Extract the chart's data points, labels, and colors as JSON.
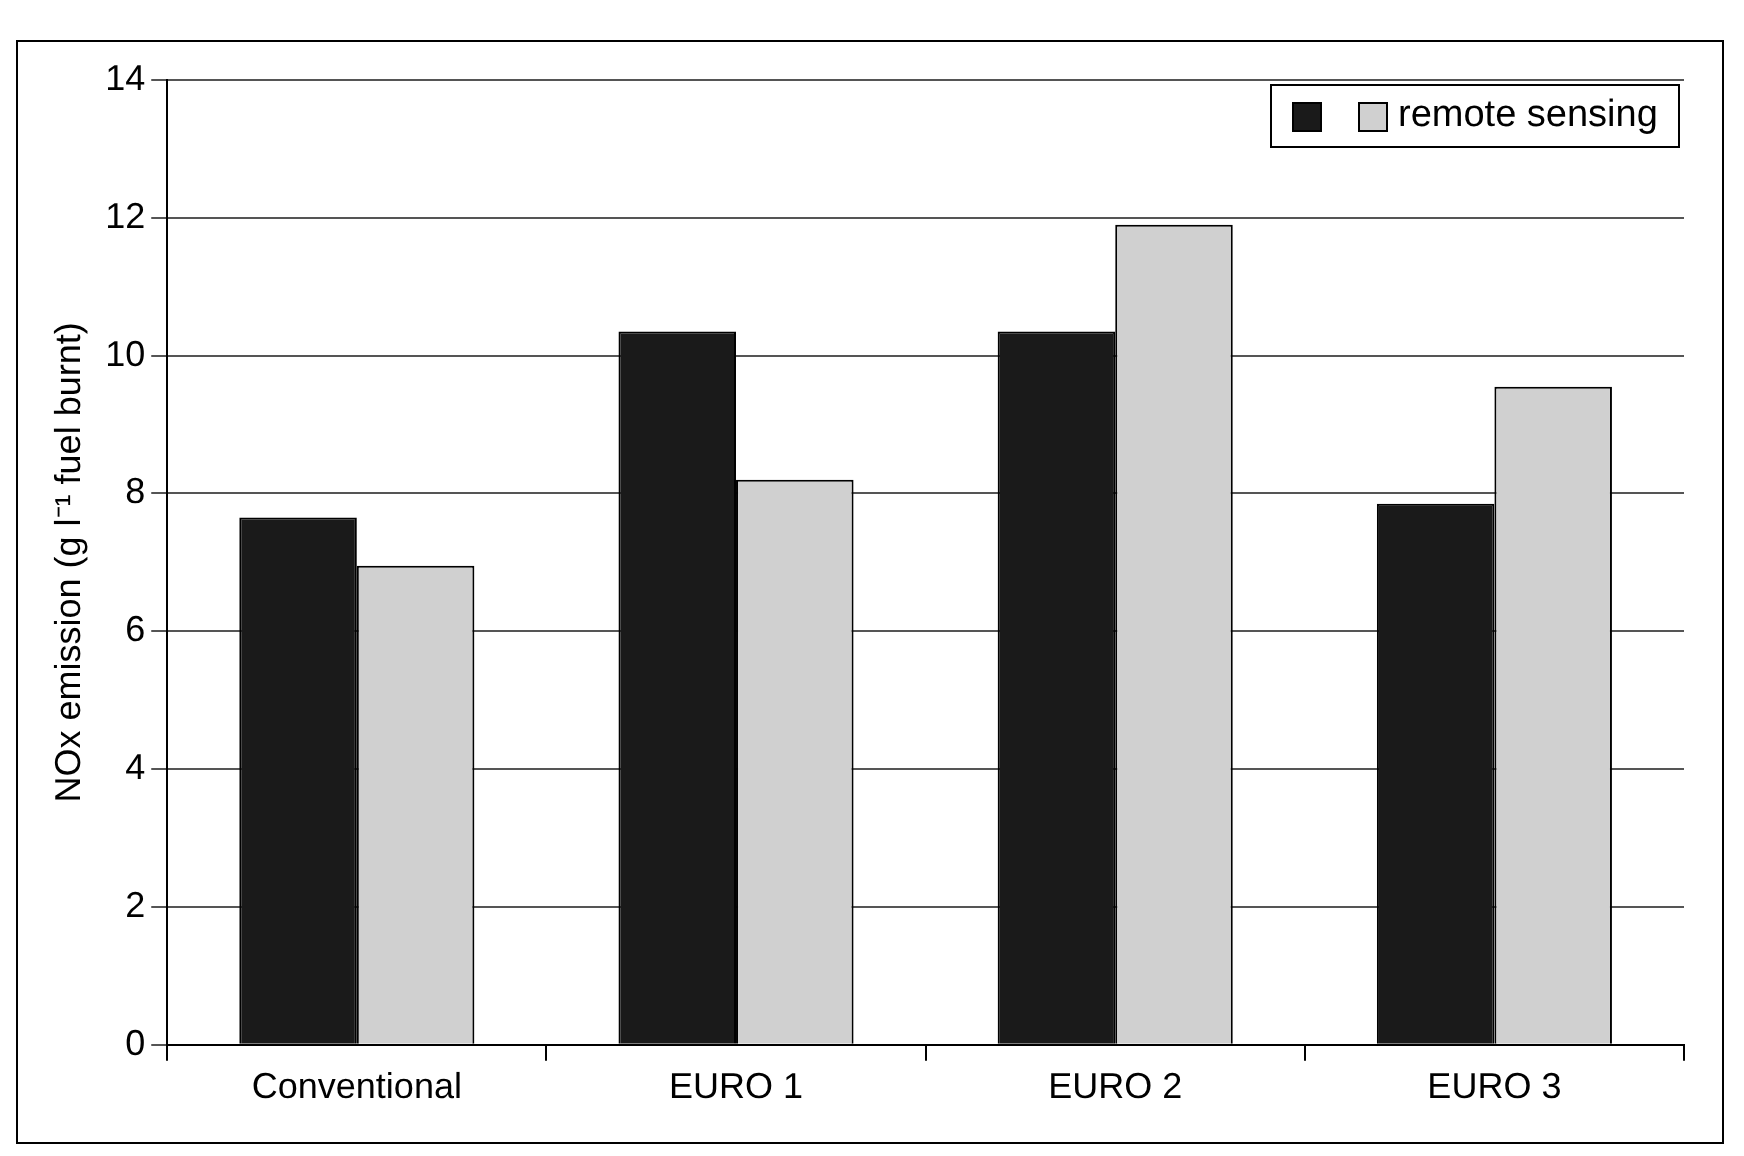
{
  "chart_data": {
    "type": "bar",
    "ylabel": "NOx emission (g l⁻¹ fuel burnt)",
    "categories": [
      "Conventional",
      "EURO 1",
      "EURO 2",
      "EURO 3"
    ],
    "series": [
      {
        "color": "#1a1a1a",
        "values": [
          7.65,
          10.35,
          10.35,
          7.85
        ]
      },
      {
        "name": "remote sensing",
        "color": "#d0d0d0",
        "values": [
          6.95,
          8.2,
          11.9,
          9.55
        ]
      }
    ],
    "ylim": [
      0,
      14
    ],
    "yticks": [
      0,
      2,
      4,
      6,
      8,
      10,
      12,
      14
    ],
    "grid": "y",
    "legend": "top right"
  }
}
